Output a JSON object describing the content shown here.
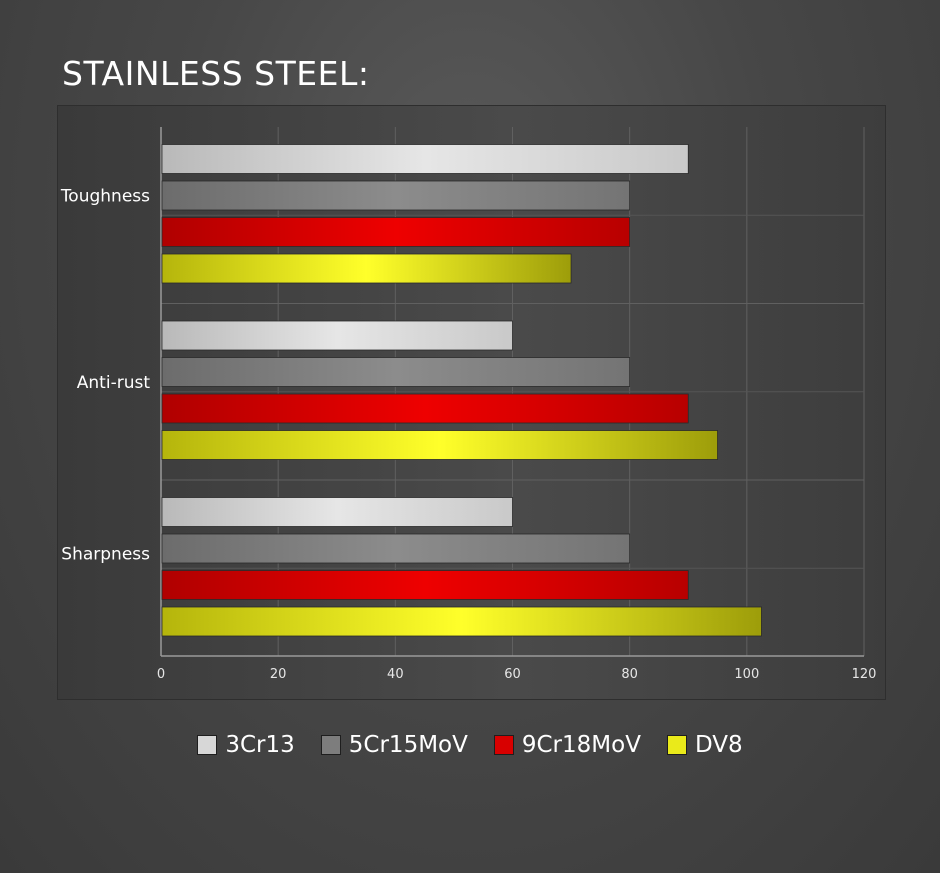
{
  "page": {
    "title": "STAINLESS STEEL:"
  },
  "chart_data": {
    "type": "bar",
    "orientation": "horizontal",
    "title": "STAINLESS STEEL:",
    "categories": [
      "Toughness",
      "Anti-rust",
      "Sharpness"
    ],
    "series": [
      {
        "name": "3Cr13",
        "color": "#d7d7d7",
        "values": [
          90,
          60,
          60
        ]
      },
      {
        "name": "5Cr15MoV",
        "color": "#7d7d7d",
        "values": [
          80,
          80,
          80
        ]
      },
      {
        "name": "9Cr18MoV",
        "color": "#d80000",
        "values": [
          80,
          90,
          90
        ]
      },
      {
        "name": "DV8",
        "color": "#eaea1a",
        "values": [
          70,
          95,
          102.5
        ]
      }
    ],
    "xlim": [
      0,
      120
    ],
    "xticks": [
      "0",
      "20",
      "40",
      "60",
      "80",
      "100",
      "120"
    ],
    "grid": true,
    "legend_position": "bottom"
  }
}
